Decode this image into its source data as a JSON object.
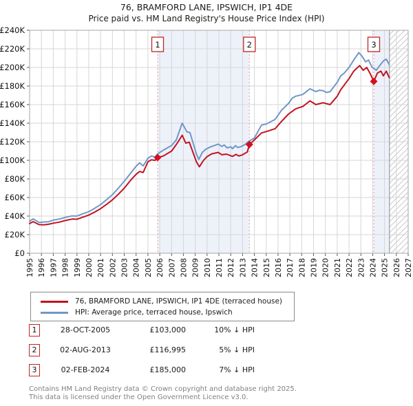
{
  "title": "76, BRAMFORD LANE, IPSWICH, IP1 4DE",
  "subtitle": "Price paid vs. HM Land Registry's House Price Index (HPI)",
  "legend": [
    {
      "label": "76, BRAMFORD LANE, IPSWICH, IP1 4DE (terraced house)",
      "color": "#c1121f"
    },
    {
      "label": "HPI: Average price, terraced house, Ipswich",
      "color": "#7096c8"
    }
  ],
  "transactions": [
    {
      "num": "1",
      "date": "28-OCT-2005",
      "price": "£103,000",
      "hpi_delta": "10% ↓ HPI",
      "year": 2005.82,
      "value": 103000
    },
    {
      "num": "2",
      "date": "02-AUG-2013",
      "price": "£116,995",
      "hpi_delta": "5% ↓ HPI",
      "year": 2013.58,
      "value": 116995
    },
    {
      "num": "3",
      "date": "02-FEB-2024",
      "price": "£185,000",
      "hpi_delta": "7% ↓ HPI",
      "year": 2024.09,
      "value": 185000
    }
  ],
  "footer": {
    "line1": "Contains HM Land Registry data © Crown copyright and database right 2025.",
    "line2": "This data is licensed under the Open Government Licence v3.0."
  },
  "chart_data": {
    "type": "line",
    "title": "76, BRAMFORD LANE, IPSWICH, IP1 4DE",
    "xlabel": "Year",
    "ylabel": "Price (£)",
    "x_axis": {
      "min": 1995,
      "max": 2027,
      "years": [
        1995,
        1996,
        1997,
        1998,
        1999,
        2000,
        2001,
        2002,
        2003,
        2004,
        2005,
        2006,
        2007,
        2008,
        2009,
        2010,
        2011,
        2012,
        2013,
        2014,
        2015,
        2016,
        2017,
        2018,
        2019,
        2020,
        2021,
        2022,
        2023,
        2024,
        2025,
        2026,
        2027
      ]
    },
    "y_axis": {
      "min": 0,
      "max": 240000,
      "tick_step": 20000,
      "tick_labels": [
        "£0",
        "£20K",
        "£40K",
        "£60K",
        "£80K",
        "£100K",
        "£120K",
        "£140K",
        "£160K",
        "£180K",
        "£200K",
        "£220K",
        "£240K"
      ]
    },
    "grid": true,
    "legend_position": "below",
    "shaded_periods": [
      [
        2005.82,
        2013.58
      ],
      [
        2024.09,
        2025.42
      ]
    ],
    "future_hatch": [
      2025.42,
      2027
    ],
    "colors": {
      "shade": "#edf1fa",
      "grid": "#d6d6d6",
      "border": "#a6a6a6",
      "dash": "#f09595",
      "hatch": "#c8c8c8",
      "hatch_edge": "#8a8a8a",
      "marker": "#d40f22",
      "tick": "#555555",
      "box_border": "#c22424"
    },
    "series": [
      {
        "name": "hpi",
        "label": "HPI: Average price, terraced house, Ipswich",
        "color": "#7096c8",
        "points": [
          [
            1995.0,
            34500
          ],
          [
            1995.3,
            37000
          ],
          [
            1995.8,
            33200
          ],
          [
            1996.2,
            33600
          ],
          [
            1996.6,
            33900
          ],
          [
            1997.0,
            35600
          ],
          [
            1997.5,
            36800
          ],
          [
            1998.0,
            38500
          ],
          [
            1998.6,
            40200
          ],
          [
            1999.0,
            40000
          ],
          [
            1999.5,
            42500
          ],
          [
            2000.0,
            44700
          ],
          [
            2000.5,
            48400
          ],
          [
            2001.0,
            52400
          ],
          [
            2001.5,
            57500
          ],
          [
            2002.0,
            63000
          ],
          [
            2002.5,
            70000
          ],
          [
            2003.0,
            77500
          ],
          [
            2003.5,
            85500
          ],
          [
            2004.0,
            93600
          ],
          [
            2004.3,
            97300
          ],
          [
            2004.6,
            94000
          ],
          [
            2005.0,
            102200
          ],
          [
            2005.3,
            104700
          ],
          [
            2005.6,
            103500
          ],
          [
            2005.83,
            107000
          ],
          [
            2006.3,
            110900
          ],
          [
            2007.0,
            116000
          ],
          [
            2007.4,
            122000
          ],
          [
            2007.9,
            140000
          ],
          [
            2008.3,
            130500
          ],
          [
            2008.55,
            130000
          ],
          [
            2009.1,
            107000
          ],
          [
            2009.3,
            101000
          ],
          [
            2009.6,
            108500
          ],
          [
            2009.9,
            112000
          ],
          [
            2010.3,
            114500
          ],
          [
            2010.95,
            117500
          ],
          [
            2011.25,
            115000
          ],
          [
            2011.45,
            116500
          ],
          [
            2011.7,
            113300
          ],
          [
            2012.0,
            114600
          ],
          [
            2012.15,
            112600
          ],
          [
            2012.4,
            115800
          ],
          [
            2012.6,
            113800
          ],
          [
            2012.9,
            115000
          ],
          [
            2013.2,
            117000
          ],
          [
            2013.58,
            121000
          ],
          [
            2014.0,
            124000
          ],
          [
            2014.6,
            138000
          ],
          [
            2015.0,
            139000
          ],
          [
            2015.75,
            144000
          ],
          [
            2016.3,
            154000
          ],
          [
            2016.9,
            161500
          ],
          [
            2017.2,
            167000
          ],
          [
            2017.5,
            169000
          ],
          [
            2018.1,
            171000
          ],
          [
            2018.7,
            177000
          ],
          [
            2019.2,
            174000
          ],
          [
            2019.5,
            175500
          ],
          [
            2019.8,
            175000
          ],
          [
            2020.1,
            173000
          ],
          [
            2020.4,
            174000
          ],
          [
            2021.0,
            184000
          ],
          [
            2021.3,
            191000
          ],
          [
            2021.6,
            194000
          ],
          [
            2022.0,
            200000
          ],
          [
            2022.4,
            208000
          ],
          [
            2022.83,
            216000
          ],
          [
            2023.1,
            212000
          ],
          [
            2023.4,
            206000
          ],
          [
            2023.65,
            208000
          ],
          [
            2023.95,
            200000
          ],
          [
            2024.09,
            199000
          ],
          [
            2024.3,
            197000
          ],
          [
            2024.6,
            202000
          ],
          [
            2024.9,
            207000
          ],
          [
            2025.15,
            209000
          ],
          [
            2025.4,
            203000
          ]
        ]
      },
      {
        "name": "price_paid",
        "label": "76, BRAMFORD LANE, IPSWICH, IP1 4DE (terraced house)",
        "color": "#c1121f",
        "points": [
          [
            1995.0,
            32000
          ],
          [
            1995.3,
            34000
          ],
          [
            1995.8,
            30800
          ],
          [
            1996.2,
            30600
          ],
          [
            1996.6,
            31200
          ],
          [
            1997.0,
            32400
          ],
          [
            1997.5,
            33500
          ],
          [
            1998.0,
            35200
          ],
          [
            1998.6,
            36800
          ],
          [
            1999.0,
            36600
          ],
          [
            1999.5,
            38800
          ],
          [
            2000.0,
            41000
          ],
          [
            2000.5,
            44300
          ],
          [
            2001.0,
            48000
          ],
          [
            2001.5,
            52500
          ],
          [
            2002.0,
            57500
          ],
          [
            2002.5,
            63500
          ],
          [
            2003.0,
            70000
          ],
          [
            2003.5,
            78000
          ],
          [
            2004.0,
            85000
          ],
          [
            2004.3,
            88000
          ],
          [
            2004.6,
            87000
          ],
          [
            2005.0,
            98500
          ],
          [
            2005.3,
            100500
          ],
          [
            2005.6,
            100000
          ],
          [
            2005.82,
            103000
          ],
          [
            2006.3,
            104700
          ],
          [
            2007.0,
            110000
          ],
          [
            2007.4,
            117000
          ],
          [
            2007.9,
            127000
          ],
          [
            2008.2,
            118500
          ],
          [
            2008.5,
            119500
          ],
          [
            2009.1,
            98500
          ],
          [
            2009.35,
            93000
          ],
          [
            2009.7,
            100000
          ],
          [
            2010.0,
            104000
          ],
          [
            2010.4,
            107000
          ],
          [
            2010.95,
            108500
          ],
          [
            2011.25,
            106000
          ],
          [
            2011.65,
            106700
          ],
          [
            2012.15,
            104200
          ],
          [
            2012.45,
            106400
          ],
          [
            2012.7,
            104700
          ],
          [
            2013.0,
            106000
          ],
          [
            2013.4,
            109000
          ],
          [
            2013.58,
            116995
          ],
          [
            2014.0,
            122000
          ],
          [
            2014.6,
            129500
          ],
          [
            2015.0,
            131000
          ],
          [
            2015.75,
            134000
          ],
          [
            2016.3,
            142000
          ],
          [
            2016.9,
            150000
          ],
          [
            2017.5,
            155500
          ],
          [
            2018.1,
            158000
          ],
          [
            2018.7,
            164000
          ],
          [
            2019.2,
            160000
          ],
          [
            2019.8,
            162000
          ],
          [
            2020.4,
            160000
          ],
          [
            2021.0,
            169000
          ],
          [
            2021.3,
            176000
          ],
          [
            2022.0,
            188000
          ],
          [
            2022.4,
            196000
          ],
          [
            2022.9,
            202000
          ],
          [
            2023.2,
            197000
          ],
          [
            2023.5,
            200000
          ],
          [
            2023.8,
            193000
          ],
          [
            2024.09,
            185000
          ],
          [
            2024.4,
            194000
          ],
          [
            2024.7,
            196000
          ],
          [
            2024.9,
            191000
          ],
          [
            2025.15,
            196000
          ],
          [
            2025.4,
            189000
          ]
        ]
      }
    ]
  }
}
